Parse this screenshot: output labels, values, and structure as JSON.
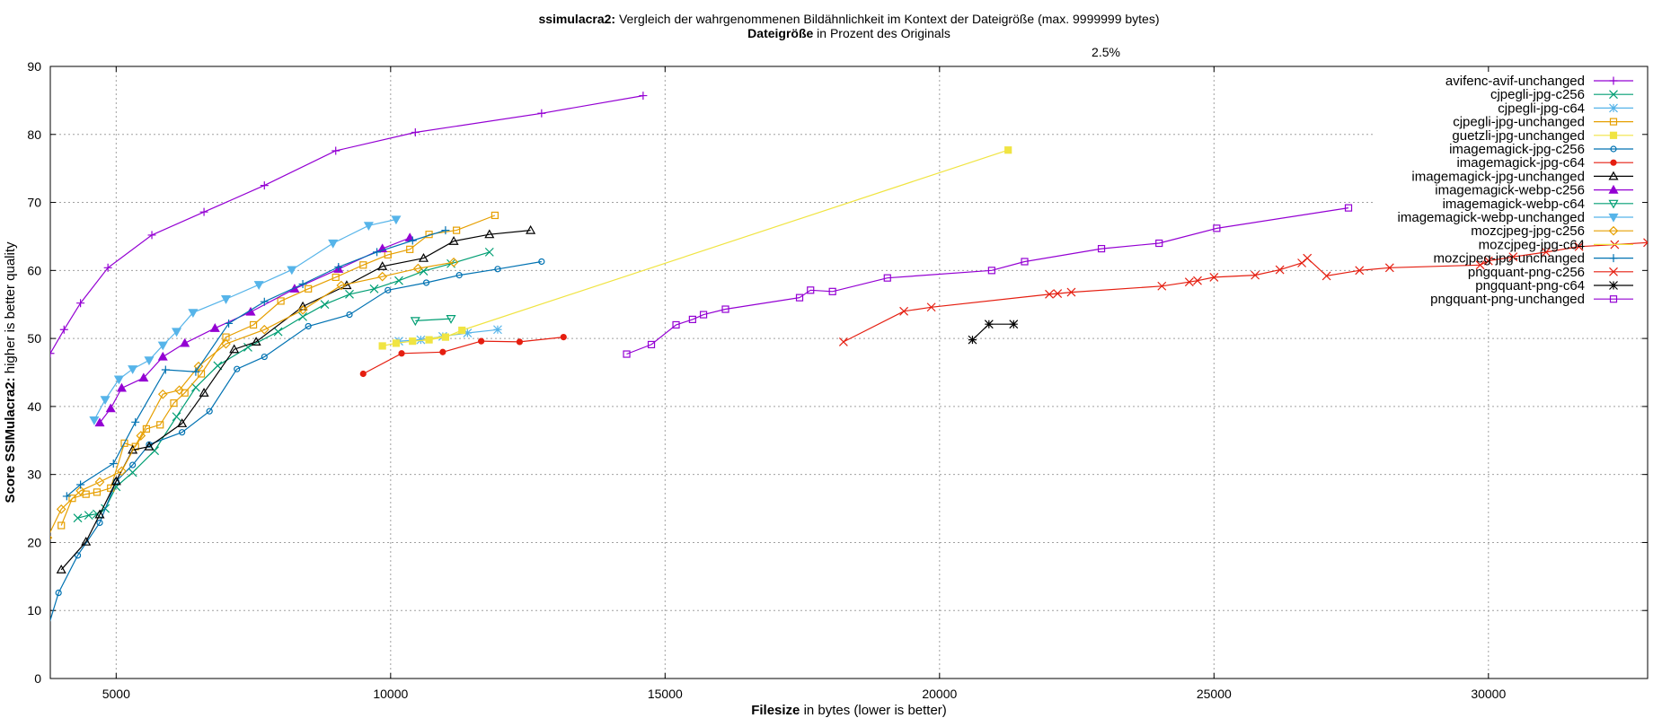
{
  "chart_data": {
    "type": "line",
    "title": {
      "bold": "ssimulacra2:",
      "rest": " Vergleich der wahrgenommenen Bildähnlichkeit im Kontext der Dateigröße (max. 9999999 bytes)"
    },
    "subtitle": {
      "bold": "Dateigröße",
      "rest": " in Prozent des Originals"
    },
    "top_tick_label": "2.5%",
    "xlabel": {
      "bold": "Filesize",
      "rest": " in bytes (lower is better)"
    },
    "ylabel": {
      "bold": "Score SSIMulacra2:",
      "rest": " higher is better quality"
    },
    "xlim": [
      3800,
      32900
    ],
    "ylim": [
      0,
      90
    ],
    "xticks": [
      5000,
      10000,
      15000,
      20000,
      25000,
      30000
    ],
    "yticks": [
      0,
      10,
      20,
      30,
      40,
      50,
      60,
      70,
      80,
      90
    ],
    "grid": true,
    "legend_position": "top-right",
    "series": [
      {
        "name": "avifenc-avif-unchanged",
        "color": "#9400d3",
        "marker": "plus",
        "x": [
          3650,
          3800,
          4050,
          4350,
          4850,
          5650,
          6600,
          7700,
          9000,
          10450,
          12750,
          14600
        ],
        "y": [
          46,
          47.8,
          51.3,
          55.2,
          60.4,
          65.2,
          68.6,
          72.5,
          77.6,
          80.3,
          83.1,
          85.7
        ]
      },
      {
        "name": "cjpegli-jpg-c256",
        "color": "#009e73",
        "marker": "x",
        "x": [
          4300,
          4500,
          4650,
          4800,
          5000,
          5300,
          5700,
          6100,
          6450,
          6850,
          7400,
          7950,
          8400,
          8800,
          9250,
          9700,
          10150,
          10600,
          11100,
          11800
        ],
        "y": [
          23.6,
          24,
          24.2,
          25,
          28.2,
          30.3,
          33.5,
          38.5,
          42.8,
          46,
          48.7,
          51,
          53.2,
          55,
          56.5,
          57.3,
          58.5,
          59.9,
          61,
          62.7
        ]
      },
      {
        "name": "cjpegli-jpg-c64",
        "color": "#56b4e9",
        "marker": "star",
        "x": [
          10150,
          10550,
          10950,
          11400,
          11950
        ],
        "y": [
          49.6,
          49.8,
          50.3,
          50.8,
          51.3
        ]
      },
      {
        "name": "cjpegli-jpg-unchanged",
        "color": "#e69f00",
        "marker": "square",
        "x": [
          4000,
          4200,
          4450,
          4650,
          4900,
          5150,
          5350,
          5550,
          5800,
          6050,
          6250,
          6550,
          7000,
          7500,
          8000,
          8500,
          9000,
          9500,
          9950,
          10350,
          10700,
          11200,
          11900
        ],
        "y": [
          22.5,
          26.5,
          27.1,
          27.4,
          28,
          34.6,
          34.1,
          36.7,
          37.3,
          40.5,
          42,
          44.8,
          50.2,
          52,
          55.5,
          57.3,
          59,
          60.8,
          62.3,
          63.1,
          65.3,
          65.9,
          68.1
        ]
      },
      {
        "name": "guetzli-jpg-unchanged",
        "color": "#f0e442",
        "marker": "fsquare",
        "x": [
          9850,
          10100,
          10400,
          10700,
          11000,
          11300,
          21250
        ],
        "y": [
          48.9,
          49.3,
          49.6,
          49.8,
          50.2,
          51.2,
          77.7
        ]
      },
      {
        "name": "imagemagick-jpg-c256",
        "color": "#0072b2",
        "marker": "circle",
        "x": [
          3650,
          3950,
          4300,
          4700,
          5000,
          5300,
          5600,
          6200,
          6700,
          7200,
          7700,
          8500,
          9250,
          9950,
          10650,
          11250,
          11950,
          12750
        ],
        "y": [
          4.6,
          12.6,
          18.1,
          22.9,
          29,
          31.4,
          34.4,
          36.2,
          39.3,
          45.5,
          47.3,
          51.8,
          53.5,
          57.1,
          58.2,
          59.3,
          60.2,
          61.3
        ]
      },
      {
        "name": "imagemagick-jpg-c64",
        "color": "#e51e10",
        "marker": "fcircle",
        "x": [
          9500,
          10200,
          10950,
          11650,
          12350,
          13150
        ],
        "y": [
          44.8,
          47.8,
          48,
          49.6,
          49.5,
          50.2
        ]
      },
      {
        "name": "imagemagick-jpg-unchanged",
        "color": "#000000",
        "marker": "triangle",
        "x": [
          4000,
          4450,
          4700,
          5000,
          5300,
          5600,
          6200,
          6600,
          7150,
          7550,
          8400,
          9200,
          9850,
          10600,
          11150,
          11800,
          12550
        ],
        "y": [
          16,
          20.1,
          24.1,
          29,
          33.6,
          34.1,
          37.5,
          42,
          48.4,
          49.5,
          54.7,
          57.8,
          60.6,
          61.8,
          64.3,
          65.3,
          65.9
        ]
      },
      {
        "name": "imagemagick-webp-c256",
        "color": "#9400d3",
        "marker": "ftriangle",
        "x": [
          4700,
          4900,
          5100,
          5500,
          5850,
          6250,
          6800,
          7450,
          8250,
          9050,
          9850,
          10350
        ],
        "y": [
          37.6,
          39.7,
          42.7,
          44.2,
          47.3,
          49.3,
          51.5,
          53.9,
          57.3,
          60.2,
          63.2,
          64.8
        ]
      },
      {
        "name": "imagemagick-webp-c64",
        "color": "#009e73",
        "marker": "dtriangle",
        "x": [
          10450,
          11100
        ],
        "y": [
          52.6,
          52.9
        ]
      },
      {
        "name": "imagemagick-webp-unchanged",
        "color": "#56b4e9",
        "marker": "fdtriangle",
        "x": [
          4600,
          4800,
          5050,
          5300,
          5600,
          5850,
          6100,
          6400,
          7000,
          7600,
          8200,
          8950,
          9600,
          10100
        ],
        "y": [
          38,
          41,
          44,
          45.5,
          46.8,
          49,
          51,
          53.8,
          55.8,
          57.9,
          60.1,
          64,
          66.6,
          67.5
        ]
      },
      {
        "name": "mozcjpeg-jpg-c256",
        "color": "#e69f00",
        "marker": "diamond",
        "x": [
          3750,
          4000,
          4350,
          4700,
          5100,
          5450,
          5850,
          6150,
          6500,
          7000,
          7700,
          8400,
          9100,
          9850,
          10500,
          11150
        ],
        "y": [
          20.7,
          24.9,
          27.6,
          28.9,
          30.5,
          35.7,
          41.8,
          42.4,
          45.9,
          49.2,
          51.3,
          54.2,
          57.8,
          59.1,
          60.3,
          61.2
        ]
      },
      {
        "name": "mozcjpeg-jpg-c64",
        "color": "#f0e442",
        "marker": "none",
        "x": [
          10600,
          11100,
          11350
        ],
        "y": [
          49.8,
          50.5,
          50.9
        ]
      },
      {
        "name": "mozcjpeg-jpg-unchanged",
        "color": "#0072b2",
        "marker": "plus",
        "x": [
          4100,
          4350,
          4950,
          5350,
          5900,
          6450,
          7050,
          7700,
          8400,
          9050,
          9750,
          10400,
          11000
        ],
        "y": [
          26.8,
          28.5,
          31.6,
          37.7,
          45.4,
          45.1,
          52.2,
          55.4,
          58,
          60.5,
          62.7,
          64.4,
          65.9
        ]
      },
      {
        "name": "pngquant-png-c256",
        "color": "#e51e10",
        "marker": "x",
        "x": [
          18250,
          19350,
          19850,
          22000,
          22150,
          22400,
          24050,
          24550,
          24700,
          25000,
          25750,
          26200,
          26600,
          26700,
          27050,
          27650,
          28200,
          29850,
          30000,
          30450,
          31050,
          31650,
          32300,
          32900
        ],
        "y": [
          49.5,
          54,
          54.6,
          56.5,
          56.6,
          56.8,
          57.7,
          58.3,
          58.5,
          59,
          59.3,
          60.1,
          61.1,
          61.8,
          59.2,
          60,
          60.4,
          60.8,
          61.4,
          62,
          62.7,
          63.5,
          63.8,
          64.1
        ]
      },
      {
        "name": "pngquant-png-c64",
        "color": "#000000",
        "marker": "star",
        "x": [
          20600,
          20900,
          21350
        ],
        "y": [
          49.8,
          52.1,
          52.1
        ]
      },
      {
        "name": "pngquant-png-unchanged",
        "color": "#9400d3",
        "marker": "square",
        "x": [
          14300,
          14750,
          15200,
          15500,
          15700,
          16100,
          17450,
          17650,
          18050,
          19050,
          20950,
          21550,
          22950,
          24000,
          25050,
          27450
        ],
        "y": [
          47.7,
          49.1,
          52,
          52.8,
          53.5,
          54.3,
          56,
          57.1,
          56.9,
          58.9,
          60,
          61.3,
          63.2,
          64,
          66.2,
          69.2
        ]
      }
    ]
  }
}
